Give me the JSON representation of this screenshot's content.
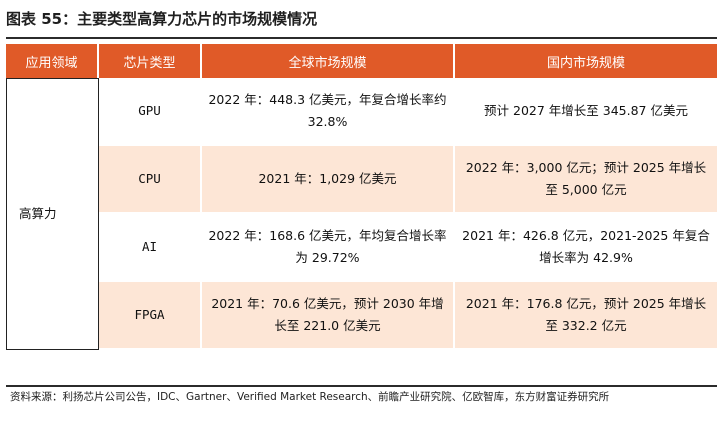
{
  "title": "图表 55：主要类型高算力芯片的市场规模情况",
  "headers": [
    "应用领域",
    "芯片类型",
    "全球市场规模",
    "国内市场规模"
  ],
  "area": "高算力",
  "rows": [
    {
      "type": "GPU",
      "global": "2022 年：448.3 亿美元，年复合增长率约 32.8%",
      "domestic": "预计 2027 年增长至 345.87 亿美元"
    },
    {
      "type": "CPU",
      "global": "2021 年：1,029 亿美元",
      "domestic": "2022 年：3,000 亿元；预计 2025 年增长至 5,000 亿元"
    },
    {
      "type": "AI",
      "global": "2022 年：168.6 亿美元，年均复合增长率为 29.72%",
      "domestic": "2021 年：426.8 亿元，2021-2025 年复合增长率为 42.9%"
    },
    {
      "type": "FPGA",
      "global": "2021 年：70.6 亿美元，预计 2030 年增长至 221.0 亿美元",
      "domestic": "2021 年：176.8 亿元，预计 2025 年增长至 332.2 亿元"
    }
  ],
  "source": "资料来源：利扬芯片公司公告，IDC、Gartner、Verified Market Research、前瞻产业研究院、亿欧智库，东方财富证券研究所"
}
